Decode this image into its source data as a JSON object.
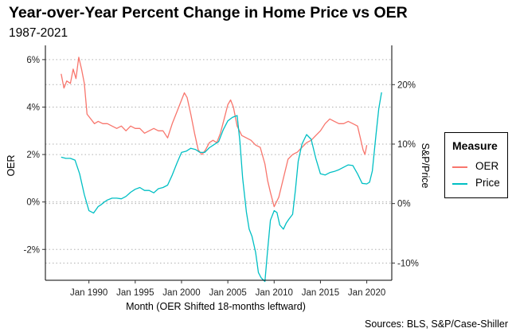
{
  "title": "Year-over-Year Percent Change in Home Price vs OER",
  "subtitle": "1987-2021",
  "caption": "Sources: BLS, S&P/Case-Shiller",
  "chart_data": {
    "type": "line",
    "xlabel": "Month (OER Shifted 18-months leftward)",
    "ylabel": "OER",
    "y2label": "S&P/Price",
    "xlim": [
      1985.3,
      2022.7
    ],
    "ylim": [
      -3.3,
      6.6
    ],
    "y2lim": [
      -12.9,
      26.6
    ],
    "x_ticks": [
      1990,
      1995,
      2000,
      2005,
      2010,
      2015,
      2020
    ],
    "x_tick_labels": [
      "Jan 1990",
      "Jan 1995",
      "Jan 2000",
      "Jan 2005",
      "Jan 2010",
      "Jan 2015",
      "Jan 2020"
    ],
    "y_ticks": [
      -2,
      0,
      2,
      4,
      6
    ],
    "y_tick_labels": [
      "-2%",
      "0%",
      "2%",
      "4%",
      "6%"
    ],
    "y2_ticks": [
      -10,
      0,
      10,
      20
    ],
    "y2_tick_labels": [
      "-10%",
      "0%",
      "10%",
      "20%"
    ],
    "grid": "horizontal dotted",
    "legend": {
      "title": "Measure",
      "position": "right"
    },
    "series": [
      {
        "name": "OER",
        "color": "#F8766D",
        "axis": "left",
        "x": [
          1987.0,
          1987.3,
          1987.6,
          1988.0,
          1988.3,
          1988.6,
          1988.9,
          1989.2,
          1989.5,
          1989.8,
          1990.2,
          1990.6,
          1991.0,
          1991.5,
          1992.0,
          1992.5,
          1993.0,
          1993.5,
          1994.0,
          1994.5,
          1995.0,
          1995.5,
          1996.0,
          1996.5,
          1997.0,
          1997.5,
          1998.0,
          1998.5,
          1999.0,
          1999.5,
          2000.0,
          2000.3,
          2000.6,
          2001.0,
          2001.4,
          2001.8,
          2002.2,
          2002.6,
          2003.0,
          2003.4,
          2003.8,
          2004.2,
          2004.6,
          2005.0,
          2005.3,
          2005.6,
          2006.0,
          2006.5,
          2007.0,
          2007.5,
          2008.0,
          2008.5,
          2009.0,
          2009.3,
          2009.6,
          2010.0,
          2010.5,
          2011.0,
          2011.5,
          2012.0,
          2012.5,
          2013.0,
          2013.5,
          2014.0,
          2014.5,
          2015.0,
          2015.5,
          2016.0,
          2016.5,
          2017.0,
          2017.5,
          2018.0,
          2018.5,
          2019.0,
          2019.3,
          2019.6,
          2019.8,
          2020.0
        ],
        "values": [
          5.4,
          4.8,
          5.1,
          5.0,
          5.6,
          5.2,
          6.1,
          5.6,
          5.0,
          3.7,
          3.5,
          3.3,
          3.4,
          3.3,
          3.3,
          3.2,
          3.1,
          3.2,
          3.0,
          3.2,
          3.1,
          3.1,
          2.9,
          3.0,
          3.1,
          3.0,
          3.0,
          2.7,
          3.3,
          3.8,
          4.3,
          4.6,
          4.4,
          3.7,
          2.9,
          2.2,
          2.0,
          2.2,
          2.5,
          2.6,
          2.5,
          2.9,
          3.5,
          4.1,
          4.3,
          4.0,
          3.2,
          2.8,
          2.7,
          2.6,
          2.4,
          2.3,
          1.6,
          0.9,
          0.4,
          -0.2,
          0.2,
          1.0,
          1.8,
          2.0,
          2.1,
          2.3,
          2.5,
          2.6,
          2.8,
          3.0,
          3.3,
          3.5,
          3.4,
          3.3,
          3.3,
          3.4,
          3.3,
          3.2,
          2.7,
          2.2,
          2.0,
          2.4
        ]
      },
      {
        "name": "Price",
        "color": "#00BFC4",
        "axis": "right",
        "x": [
          1987.0,
          1987.5,
          1988.0,
          1988.5,
          1989.0,
          1989.5,
          1990.0,
          1990.5,
          1991.0,
          1991.3,
          1991.6,
          1992.0,
          1992.5,
          1993.0,
          1993.5,
          1994.0,
          1994.5,
          1995.0,
          1995.5,
          1996.0,
          1996.5,
          1997.0,
          1997.5,
          1998.0,
          1998.5,
          1999.0,
          1999.5,
          2000.0,
          2000.5,
          2001.0,
          2001.5,
          2002.0,
          2002.5,
          2003.0,
          2003.5,
          2004.0,
          2004.5,
          2005.0,
          2005.5,
          2006.0,
          2006.3,
          2006.6,
          2007.0,
          2007.3,
          2007.6,
          2008.0,
          2008.3,
          2008.6,
          2009.0,
          2009.3,
          2009.6,
          2010.0,
          2010.3,
          2010.6,
          2011.0,
          2011.3,
          2011.6,
          2012.0,
          2012.3,
          2012.6,
          2013.0,
          2013.5,
          2014.0,
          2014.5,
          2015.0,
          2015.5,
          2016.0,
          2016.5,
          2017.0,
          2017.5,
          2018.0,
          2018.5,
          2019.0,
          2019.5,
          2020.0,
          2020.3,
          2020.6,
          2021.0,
          2021.3,
          2021.6
        ],
        "values": [
          7.8,
          7.6,
          7.6,
          7.3,
          5.0,
          1.5,
          -1.2,
          -1.6,
          -0.5,
          -0.2,
          0.2,
          0.6,
          0.9,
          0.9,
          0.8,
          1.2,
          1.9,
          2.4,
          2.7,
          2.2,
          2.2,
          1.8,
          2.5,
          2.7,
          3.1,
          4.8,
          6.8,
          8.6,
          8.8,
          9.3,
          9.1,
          8.6,
          8.6,
          9.4,
          9.9,
          10.4,
          12.4,
          13.9,
          14.5,
          14.8,
          10.4,
          4.3,
          -1.4,
          -4.3,
          -5.5,
          -8.2,
          -11.6,
          -12.5,
          -13.1,
          -7.8,
          -2.8,
          -1.2,
          -1.5,
          -3.6,
          -4.3,
          -3.3,
          -2.6,
          -1.8,
          2.3,
          7.1,
          10.0,
          11.6,
          10.8,
          7.6,
          5.0,
          4.8,
          5.2,
          5.4,
          5.7,
          6.1,
          6.5,
          6.4,
          5.0,
          3.4,
          3.3,
          3.6,
          5.5,
          11.6,
          16.0,
          18.7
        ]
      }
    ]
  }
}
